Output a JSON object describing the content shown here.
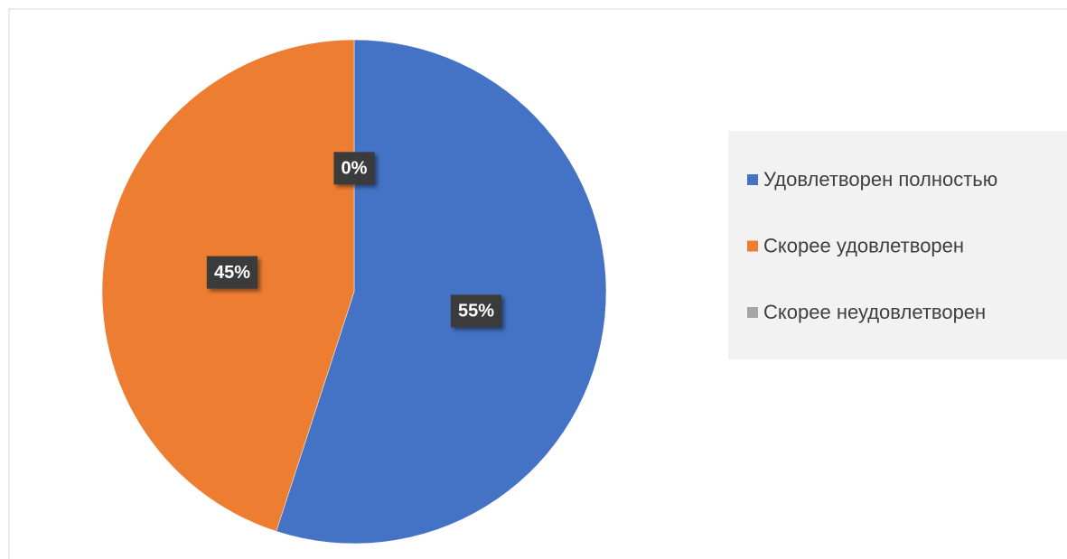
{
  "chart_data": {
    "type": "pie",
    "categories": [
      "Удовлетворен полностью",
      "Скорее удовлетворен",
      "Скорее неудовлетворен"
    ],
    "values": [
      55,
      45,
      0
    ],
    "value_labels": [
      "55%",
      "45%",
      "0%"
    ],
    "colors": [
      "#4472c4",
      "#ed7d31",
      "#a5a5a5"
    ],
    "legend": "right"
  }
}
